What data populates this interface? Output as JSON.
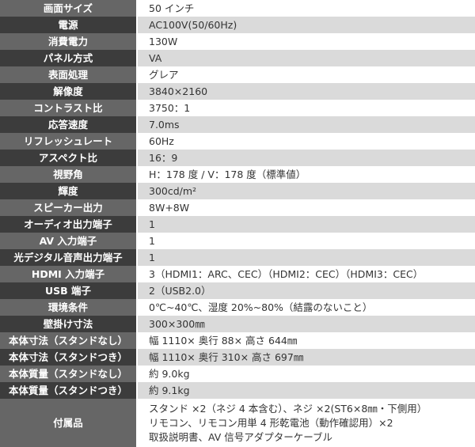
{
  "specs": [
    {
      "label": "画面サイズ",
      "value": "50 インチ"
    },
    {
      "label": "電源",
      "value": "AC100V(50/60Hz)"
    },
    {
      "label": "消費電力",
      "value": "130W"
    },
    {
      "label": "パネル方式",
      "value": "VA"
    },
    {
      "label": "表面処理",
      "value": "グレア"
    },
    {
      "label": "解像度",
      "value": "3840×2160"
    },
    {
      "label": "コントラスト比",
      "value": "3750：1"
    },
    {
      "label": "応答速度",
      "value": "7.0ms"
    },
    {
      "label": "リフレッシュレート",
      "value": "60Hz"
    },
    {
      "label": "アスペクト比",
      "value": "16：9"
    },
    {
      "label": "視野角",
      "value": "H：178 度 / V：178 度（標準値）"
    },
    {
      "label": "輝度",
      "value": "300cd/m²"
    },
    {
      "label": "スピーカー出力",
      "value": "8W+8W"
    },
    {
      "label": "オーディオ出力端子",
      "value": "1"
    },
    {
      "label": "AV 入力端子",
      "value": "1"
    },
    {
      "label": "光デジタル音声出力端子",
      "value": "1"
    },
    {
      "label": "HDMI 入力端子",
      "value": "3（HDMI1：ARC、CEC）（HDMI2：CEC）（HDMI3：CEC）"
    },
    {
      "label": "USB 端子",
      "value": "2（USB2.0）"
    },
    {
      "label": "環境条件",
      "value": "0℃~40℃、湿度 20%~80%（結露のないこと）"
    },
    {
      "label": "壁掛け寸法",
      "value": "300×300㎜"
    },
    {
      "label": "本体寸法（スタンドなし）",
      "value": "幅 1110× 奥行 88× 高さ 644㎜"
    },
    {
      "label": "本体寸法（スタンドつき）",
      "value": "幅 1110× 奥行 310× 高さ 697㎜"
    },
    {
      "label": "本体質量（スタンドなし）",
      "value": "約 9.0kg"
    },
    {
      "label": "本体質量（スタンドつき）",
      "value": "約 9.1kg"
    }
  ],
  "accessories": {
    "label": "付属品",
    "lines": [
      "スタンド ×2（ネジ 4 本含む）、ネジ ×2(ST6×8㎜・下側用）",
      "リモコン、リモコン用単 4 形乾電池（動作確認用）×2",
      "取扱説明書、AV 信号アダプターケーブル"
    ]
  }
}
